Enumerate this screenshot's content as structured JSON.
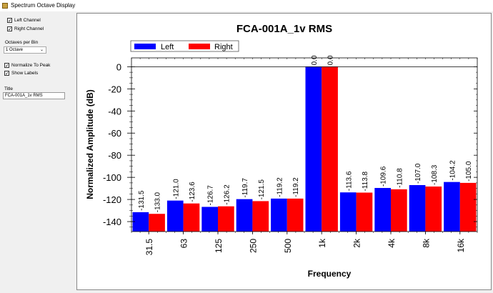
{
  "window": {
    "title": "Spectrum Octave Display"
  },
  "controls": {
    "left_channel": {
      "label": "Left Channel",
      "checked": true
    },
    "right_channel": {
      "label": "Right Channel",
      "checked": true
    },
    "octaves_label": "Octaves per Bin",
    "octaves_value": "1 Octave",
    "normalize": {
      "label": "Normalize To Peak",
      "checked": true
    },
    "show_labels": {
      "label": "Show Labels",
      "checked": true
    },
    "title_label": "Title",
    "title_value": "FCA-001A_1v RMS"
  },
  "chart_data": {
    "type": "bar",
    "title": "FCA-001A_1v RMS",
    "xlabel": "Frequency",
    "ylabel": "Normalized Amplitude (dB)",
    "ylim": [
      -149,
      8
    ],
    "yticks": [
      0,
      -20,
      -40,
      -60,
      -80,
      -100,
      -120,
      -140
    ],
    "categories": [
      "31.5",
      "63",
      "125",
      "250",
      "500",
      "1k",
      "2k",
      "4k",
      "8k",
      "16k"
    ],
    "legend_position": "top-left",
    "series": [
      {
        "name": "Left",
        "color": "#0000ff",
        "values": [
          -131.5,
          -121.0,
          -126.7,
          -119.7,
          -119.2,
          0.0,
          -113.6,
          -109.6,
          -107.0,
          -104.2
        ],
        "labels": [
          "-131.5",
          "-121.0",
          "-126.7",
          "-119.7",
          "-119.2",
          "0.0",
          "-113.6",
          "-109.6",
          "-107.0",
          "-104.2"
        ]
      },
      {
        "name": "Right",
        "color": "#ff0000",
        "values": [
          -133.0,
          -123.6,
          -126.2,
          -121.5,
          -119.2,
          0.0,
          -113.8,
          -110.8,
          -108.3,
          -105.0
        ],
        "labels": [
          "-133.0",
          "-123.6",
          "-126.2",
          "-121.5",
          "-119.2",
          "0.0",
          "-113.8",
          "-110.8",
          "-108.3",
          "-105.0"
        ]
      }
    ]
  }
}
